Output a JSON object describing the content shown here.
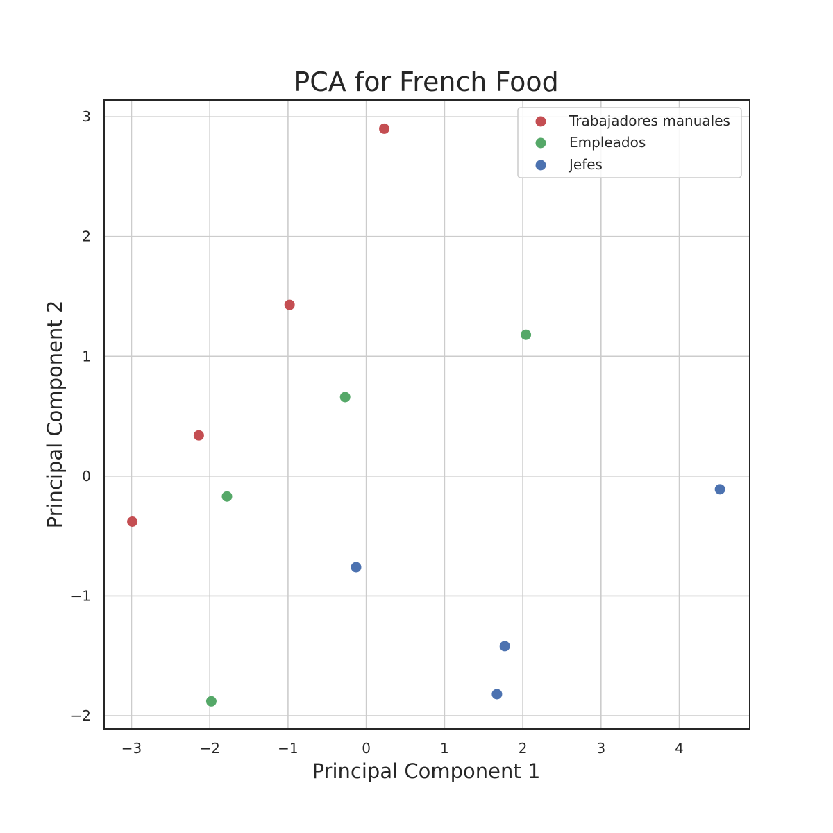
{
  "chart_data": {
    "type": "scatter",
    "title": "PCA for French Food",
    "xlabel": "Principal Component 1",
    "ylabel": "Principal Component 2",
    "xlim": [
      -3.35,
      4.9
    ],
    "ylim": [
      -2.11,
      3.14
    ],
    "xticks": [
      -3,
      -2,
      -1,
      0,
      1,
      2,
      3,
      4
    ],
    "yticks": [
      -2,
      -1,
      0,
      1,
      2,
      3
    ],
    "xtick_labels": [
      "−3",
      "−2",
      "−1",
      "0",
      "1",
      "2",
      "3",
      "4"
    ],
    "ytick_labels": [
      "−2",
      "−1",
      "0",
      "1",
      "2",
      "3"
    ],
    "grid": true,
    "legend_position": "top-right",
    "series": [
      {
        "name": "Trabajadores manuales",
        "color": "#c44e52",
        "points": [
          {
            "x": 0.23,
            "y": 2.9
          },
          {
            "x": -0.98,
            "y": 1.43
          },
          {
            "x": -2.14,
            "y": 0.34
          },
          {
            "x": -2.99,
            "y": -0.38
          }
        ]
      },
      {
        "name": "Empleados",
        "color": "#55a868",
        "points": [
          {
            "x": 2.04,
            "y": 1.18
          },
          {
            "x": -0.27,
            "y": 0.66
          },
          {
            "x": -1.78,
            "y": -0.17
          },
          {
            "x": -1.98,
            "y": -1.88
          }
        ]
      },
      {
        "name": "Jefes",
        "color": "#4c72b0",
        "points": [
          {
            "x": 4.52,
            "y": -0.11
          },
          {
            "x": -0.13,
            "y": -0.76
          },
          {
            "x": 1.77,
            "y": -1.42
          },
          {
            "x": 1.67,
            "y": -1.82
          }
        ]
      }
    ]
  }
}
